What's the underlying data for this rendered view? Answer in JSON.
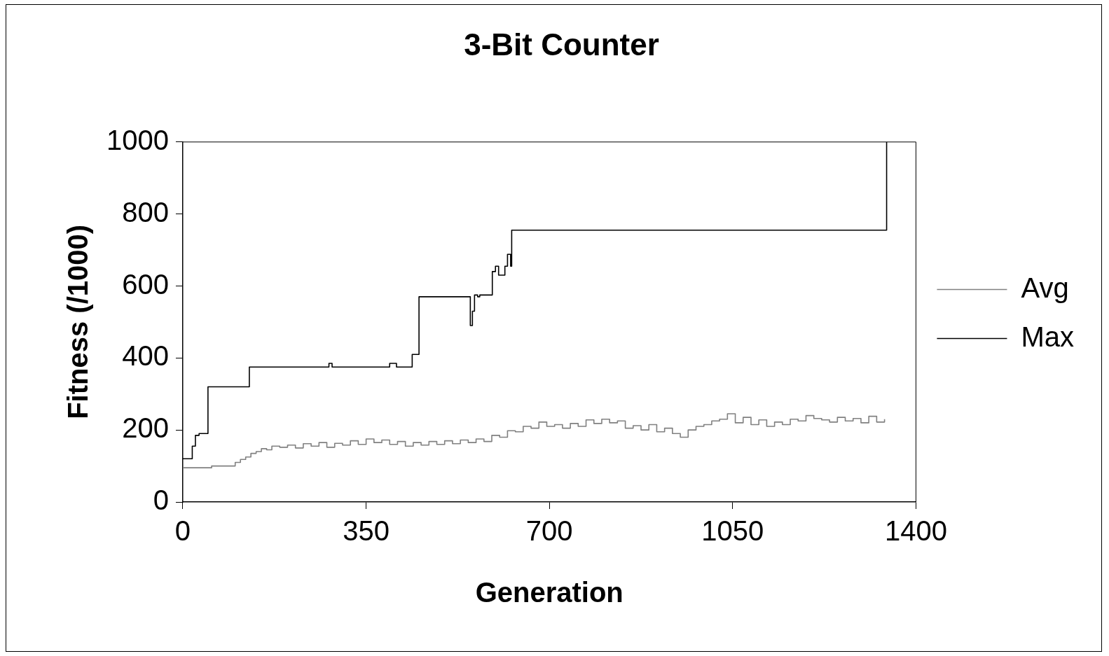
{
  "chart_data": {
    "type": "step",
    "title": "3-Bit Counter",
    "xlabel": "Generation",
    "ylabel": "Fitness (/1000)",
    "xlim": [
      0,
      1400
    ],
    "xticks": [
      0,
      350,
      700,
      1050,
      1400
    ],
    "ylim": [
      0,
      1000
    ],
    "yticks": [
      0,
      200,
      400,
      600,
      800,
      1000
    ],
    "grid": false,
    "legend": "right",
    "marker": "none",
    "line_style": "solid",
    "series": [
      {
        "name": "Avg",
        "color": "#808080",
        "x": [
          0,
          55,
          90,
          100,
          110,
          120,
          130,
          140,
          150,
          160,
          170,
          185,
          200,
          215,
          230,
          245,
          260,
          275,
          290,
          305,
          320,
          335,
          350,
          365,
          380,
          395,
          410,
          425,
          440,
          455,
          470,
          485,
          500,
          515,
          530,
          545,
          560,
          575,
          590,
          605,
          620,
          635,
          650,
          665,
          680,
          695,
          710,
          725,
          740,
          755,
          770,
          785,
          800,
          815,
          830,
          845,
          860,
          875,
          890,
          905,
          920,
          935,
          950,
          965,
          980,
          995,
          1010,
          1025,
          1040,
          1055,
          1070,
          1085,
          1100,
          1115,
          1130,
          1145,
          1160,
          1175,
          1190,
          1205,
          1220,
          1235,
          1250,
          1265,
          1280,
          1295,
          1310,
          1325,
          1340
        ],
        "values": [
          95,
          100,
          100,
          110,
          118,
          125,
          135,
          140,
          148,
          145,
          155,
          152,
          158,
          150,
          162,
          155,
          165,
          152,
          163,
          158,
          170,
          160,
          175,
          165,
          172,
          160,
          168,
          155,
          165,
          158,
          168,
          160,
          170,
          162,
          172,
          165,
          175,
          168,
          185,
          180,
          198,
          195,
          210,
          205,
          222,
          210,
          215,
          205,
          218,
          210,
          228,
          218,
          230,
          220,
          225,
          205,
          212,
          200,
          215,
          195,
          205,
          190,
          180,
          200,
          210,
          215,
          225,
          230,
          245,
          220,
          235,
          215,
          228,
          210,
          222,
          215,
          230,
          225,
          240,
          232,
          228,
          222,
          235,
          225,
          232,
          220,
          238,
          222,
          230
        ]
      },
      {
        "name": "Max",
        "color": "#000000",
        "x": [
          0,
          18,
          24,
          31,
          48,
          127,
          279,
          285,
          395,
          408,
          438,
          451,
          549,
          553,
          557,
          563,
          567,
          591,
          597,
          603,
          615,
          620,
          626,
          628,
          1344,
          1344
        ],
        "values": [
          120,
          155,
          185,
          190,
          320,
          375,
          385,
          375,
          385,
          375,
          410,
          570,
          490,
          530,
          575,
          570,
          575,
          640,
          655,
          630,
          655,
          688,
          655,
          755,
          755,
          1000
        ]
      }
    ]
  }
}
